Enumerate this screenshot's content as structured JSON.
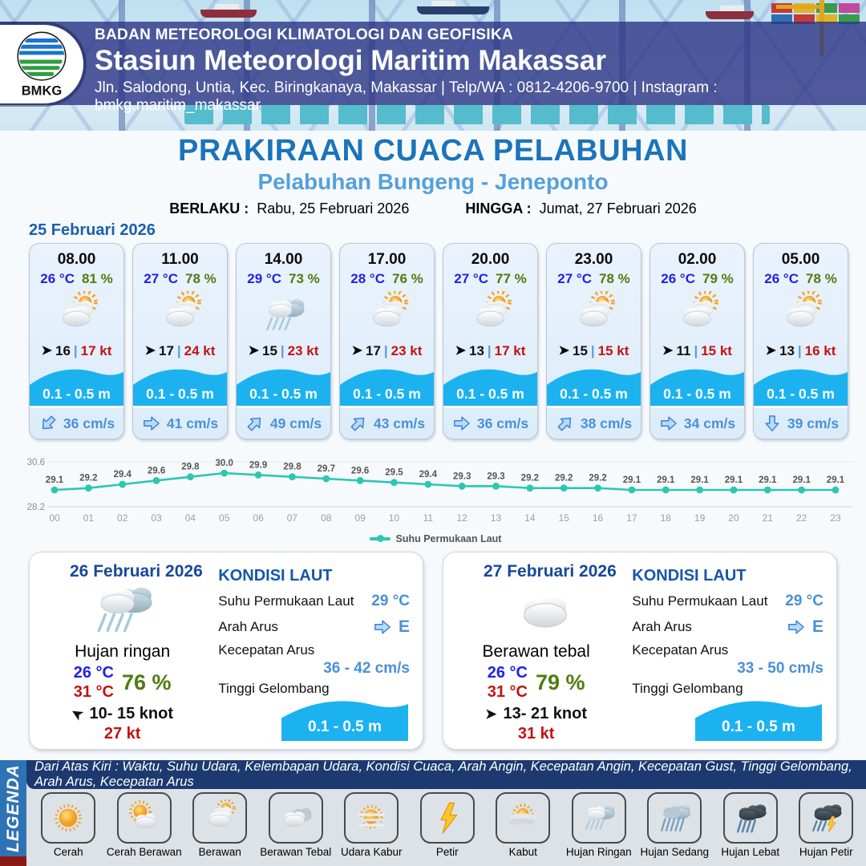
{
  "header": {
    "org": "BADAN METEOROLOGI KLIMATOLOGI DAN GEOFISIKA",
    "station": "Stasiun Meteorologi Maritim Makassar",
    "address": "Jln. Salodong, Untia, Kec. Biringkanaya, Makassar | Telp/WA : 0812-4206-9700 | Instagram : bmkg.maritim_makassar",
    "logo_text": "BMKG"
  },
  "title": {
    "main": "PRAKIRAAN CUACA PELABUHAN",
    "subtitle": "Pelabuhan Bungeng - Jeneponto",
    "berlaku_label": "BERLAKU :",
    "berlaku_value": "Rabu, 25 Februari 2026",
    "hingga_label": "HINGGA :",
    "hingga_value": "Jumat, 27 Februari 2026"
  },
  "strings": {
    "wind_sep": "|"
  },
  "hourly": {
    "date": "25 Februari 2026",
    "cards": [
      {
        "time": "08.00",
        "temp": "26 °C",
        "humidity": "81 %",
        "icon": "berawan",
        "wind": "16",
        "gust": "17 kt",
        "wave": "0.1 - 0.5 m",
        "current_speed": "36 cm/s",
        "current_dir_deg": 135
      },
      {
        "time": "11.00",
        "temp": "27 °C",
        "humidity": "78 %",
        "icon": "berawan",
        "wind": "17",
        "gust": "24 kt",
        "wave": "0.1 - 0.5 m",
        "current_speed": "41 cm/s",
        "current_dir_deg": 0
      },
      {
        "time": "14.00",
        "temp": "29 °C",
        "humidity": "73 %",
        "icon": "hujan-ringan",
        "wind": "15",
        "gust": "23 kt",
        "wave": "0.1 - 0.5 m",
        "current_speed": "49 cm/s",
        "current_dir_deg": -45
      },
      {
        "time": "17.00",
        "temp": "28 °C",
        "humidity": "76 %",
        "icon": "berawan",
        "wind": "17",
        "gust": "23 kt",
        "wave": "0.1 - 0.5 m",
        "current_speed": "43 cm/s",
        "current_dir_deg": -45
      },
      {
        "time": "20.00",
        "temp": "27 °C",
        "humidity": "77 %",
        "icon": "berawan",
        "wind": "13",
        "gust": "17 kt",
        "wave": "0.1 - 0.5 m",
        "current_speed": "36 cm/s",
        "current_dir_deg": 0
      },
      {
        "time": "23.00",
        "temp": "27 °C",
        "humidity": "78 %",
        "icon": "berawan",
        "wind": "15",
        "gust": "15 kt",
        "wave": "0.1 - 0.5 m",
        "current_speed": "38 cm/s",
        "current_dir_deg": -45
      },
      {
        "time": "02.00",
        "temp": "26 °C",
        "humidity": "79 %",
        "icon": "berawan",
        "wind": "11",
        "gust": "15 kt",
        "wave": "0.1 - 0.5 m",
        "current_speed": "34 cm/s",
        "current_dir_deg": 0
      },
      {
        "time": "05.00",
        "temp": "26 °C",
        "humidity": "78 %",
        "icon": "berawan",
        "wind": "13",
        "gust": "16 kt",
        "wave": "0.1 - 0.5 m",
        "current_speed": "39 cm/s",
        "current_dir_deg": 90
      }
    ]
  },
  "chart_data": {
    "type": "line",
    "series_name": "Suhu Permukaan Laut",
    "x": [
      "00",
      "01",
      "02",
      "03",
      "04",
      "05",
      "06",
      "07",
      "08",
      "09",
      "10",
      "11",
      "12",
      "13",
      "14",
      "15",
      "16",
      "17",
      "18",
      "19",
      "20",
      "21",
      "22",
      "23"
    ],
    "values": [
      29.1,
      29.2,
      29.4,
      29.6,
      29.8,
      30.0,
      29.9,
      29.8,
      29.7,
      29.6,
      29.5,
      29.4,
      29.3,
      29.3,
      29.2,
      29.2,
      29.2,
      29.1,
      29.1,
      29.1,
      29.1,
      29.1,
      29.1,
      29.1
    ],
    "ylim": [
      28.2,
      30.6
    ],
    "color": "#2cc7b2",
    "grid": true,
    "legend_position": "bottom"
  },
  "daily": [
    {
      "date": "26 Februari 2026",
      "icon": "hujan-ringan",
      "condition": "Hujan ringan",
      "temp_min": "26 °C",
      "temp_max": "31 °C",
      "humidity": "76 %",
      "wind_range": "10- 15 knot",
      "wind_dir_deg": -150,
      "gust": "27 kt",
      "sea": {
        "heading": "KONDISI LAUT",
        "sst_label": "Suhu Permukaan Laut",
        "sst": "29 °C",
        "dir_label": "Arah Arus",
        "dir": "E",
        "speed_label": "Kecepatan Arus",
        "speed": "36 - 42 cm/s",
        "wave_label": "Tinggi Gelombang",
        "wave": "0.1 - 0.5 m"
      }
    },
    {
      "date": "27 Februari 2026",
      "icon": "berawan-putih",
      "condition": "Berawan tebal",
      "temp_min": "26 °C",
      "temp_max": "31 °C",
      "humidity": "79 %",
      "wind_range": "13- 21 knot",
      "wind_dir_deg": 0,
      "gust": "31 kt",
      "sea": {
        "heading": "KONDISI LAUT",
        "sst_label": "Suhu Permukaan Laut",
        "sst": "29 °C",
        "dir_label": "Arah Arus",
        "dir": "E",
        "speed_label": "Kecepatan Arus",
        "speed": "33 - 50 cm/s",
        "wave_label": "Tinggi Gelombang",
        "wave": "0.1 - 0.5 m"
      }
    }
  ],
  "legend": {
    "strip": "LEGENDA",
    "description": "Dari Atas Kiri : Waktu, Suhu Udara, Kelembapan Udara, Kondisi Cuaca, Arah Angin, Kecepatan Angin, Kecepatan Gust, Tinggi Gelombang, Arah Arus, Kecepatan Arus",
    "items": [
      {
        "label": "Cerah",
        "icon": "cerah"
      },
      {
        "label": "Cerah Berawan",
        "icon": "cerah-berawan"
      },
      {
        "label": "Berawan",
        "icon": "berawan"
      },
      {
        "label": "Berawan Tebal",
        "icon": "berawan-tebal"
      },
      {
        "label": "Udara Kabur",
        "icon": "udara-kabur"
      },
      {
        "label": "Petir",
        "icon": "petir"
      },
      {
        "label": "Kabut",
        "icon": "kabut"
      },
      {
        "label": "Hujan Ringan",
        "icon": "hujan-ringan"
      },
      {
        "label": "Hujan Sedang",
        "icon": "hujan-sedang"
      },
      {
        "label": "Hujan Lebat",
        "icon": "hujan-lebat"
      },
      {
        "label": "Hujan Petir",
        "icon": "hujan-petir"
      }
    ]
  },
  "colors": {
    "accent_blue": "#1b74bc",
    "light_blue": "#55a0dd",
    "wave_cyan": "#1cb2f0",
    "temp_blue": "#2020e8",
    "humidity_green": "#4f7c10",
    "gust_red": "#c41212",
    "chart_teal": "#2cc7b2",
    "footer_navy": "#1d3a70",
    "legend_strip_blue": "#2e74b5"
  }
}
